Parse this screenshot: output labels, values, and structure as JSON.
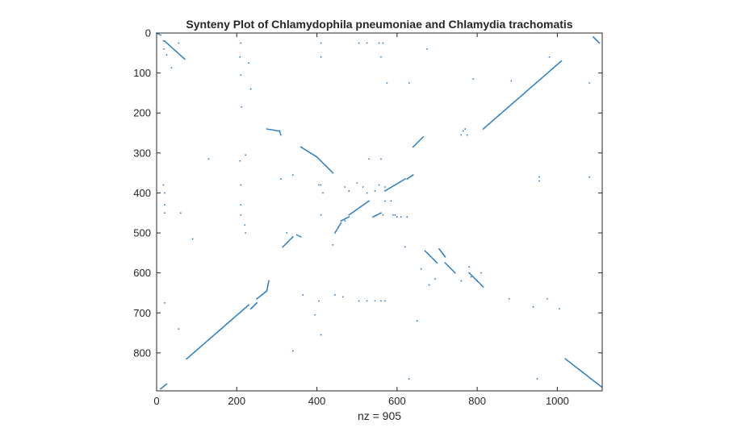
{
  "chart_data": {
    "type": "scatter",
    "title": "Synteny Plot of Chlamydophila pneumoniae and Chlamydia trachomatis",
    "xlabel": "nz = 905",
    "ylabel": "",
    "xlim": [
      0,
      1112
    ],
    "ylim": [
      0,
      895
    ],
    "y_reversed": true,
    "grid": false,
    "x_ticks": [
      0,
      200,
      400,
      600,
      800,
      1000
    ],
    "y_ticks": [
      0,
      100,
      200,
      300,
      400,
      500,
      600,
      700,
      800
    ],
    "color": "#1f77c0",
    "series": [
      {
        "segments": [
          [
            [
              0,
              0
            ],
            [
              10,
              5
            ]
          ],
          [
            [
              20,
              20
            ],
            [
              70,
              65
            ]
          ],
          [
            [
              75,
              815
            ],
            [
              230,
              680
            ]
          ],
          [
            [
              235,
              690
            ],
            [
              250,
              675
            ]
          ],
          [
            [
              250,
              665
            ],
            [
              275,
              645
            ]
          ],
          [
            [
              275,
              645
            ],
            [
              280,
              620
            ]
          ],
          [
            [
              275,
              240
            ],
            [
              305,
              245
            ]
          ],
          [
            [
              307,
              245
            ],
            [
              310,
              255
            ]
          ],
          [
            [
              315,
              535
            ],
            [
              340,
              510
            ]
          ],
          [
            [
              350,
              505
            ],
            [
              360,
              510
            ]
          ],
          [
            [
              360,
              285
            ],
            [
              400,
              310
            ]
          ],
          [
            [
              400,
              310
            ],
            [
              440,
              350
            ]
          ],
          [
            [
              445,
              500
            ],
            [
              460,
              475
            ]
          ],
          [
            [
              460,
              470
            ],
            [
              480,
              460
            ]
          ],
          [
            [
              480,
              455
            ],
            [
              530,
              420
            ]
          ],
          [
            [
              540,
              460
            ],
            [
              560,
              450
            ]
          ],
          [
            [
              570,
              395
            ],
            [
              620,
              365
            ]
          ],
          [
            [
              625,
              365
            ],
            [
              640,
              355
            ]
          ],
          [
            [
              640,
              285
            ],
            [
              665,
              260
            ]
          ],
          [
            [
              670,
              545
            ],
            [
              700,
              575
            ]
          ],
          [
            [
              705,
              540
            ],
            [
              720,
              560
            ]
          ],
          [
            [
              720,
              575
            ],
            [
              745,
              600
            ]
          ],
          [
            [
              780,
              600
            ],
            [
              815,
              635
            ]
          ],
          [
            [
              815,
              240
            ],
            [
              1010,
              70
            ]
          ],
          [
            [
              1090,
              10
            ],
            [
              1105,
              25
            ]
          ],
          [
            [
              1020,
              815
            ],
            [
              1110,
              885
            ]
          ],
          [
            [
              10,
              890
            ],
            [
              25,
              878
            ]
          ]
        ],
        "points": [
          [
            17,
            20
          ],
          [
            18,
            40
          ],
          [
            25,
            55
          ],
          [
            37,
            87
          ],
          [
            55,
            25
          ],
          [
            210,
            25
          ],
          [
            208,
            60
          ],
          [
            210,
            105
          ],
          [
            230,
            75
          ],
          [
            235,
            140
          ],
          [
            212,
            185
          ],
          [
            208,
            320
          ],
          [
            222,
            305
          ],
          [
            130,
            315
          ],
          [
            210,
            380
          ],
          [
            210,
            430
          ],
          [
            210,
            455
          ],
          [
            220,
            480
          ],
          [
            222,
            500
          ],
          [
            17,
            380
          ],
          [
            20,
            400
          ],
          [
            20,
            430
          ],
          [
            20,
            450
          ],
          [
            60,
            450
          ],
          [
            90,
            515
          ],
          [
            20,
            675
          ],
          [
            55,
            740
          ],
          [
            310,
            365
          ],
          [
            340,
            355
          ],
          [
            410,
            25
          ],
          [
            410,
            60
          ],
          [
            505,
            25
          ],
          [
            525,
            25
          ],
          [
            555,
            25
          ],
          [
            560,
            60
          ],
          [
            565,
            25
          ],
          [
            575,
            125
          ],
          [
            630,
            125
          ],
          [
            675,
            40
          ],
          [
            770,
            240
          ],
          [
            790,
            115
          ],
          [
            885,
            120
          ],
          [
            980,
            60
          ],
          [
            1080,
            125
          ],
          [
            1080,
            360
          ],
          [
            955,
            360
          ],
          [
            955,
            370
          ],
          [
            405,
            380
          ],
          [
            415,
            400
          ],
          [
            410,
            455
          ],
          [
            470,
            385
          ],
          [
            480,
            395
          ],
          [
            500,
            375
          ],
          [
            515,
            385
          ],
          [
            525,
            400
          ],
          [
            530,
            315
          ],
          [
            560,
            315
          ],
          [
            545,
            395
          ],
          [
            555,
            380
          ],
          [
            570,
            385
          ],
          [
            570,
            420
          ],
          [
            585,
            420
          ],
          [
            590,
            455
          ],
          [
            595,
            455
          ],
          [
            600,
            460
          ],
          [
            610,
            460
          ],
          [
            625,
            460
          ],
          [
            565,
            455
          ],
          [
            440,
            530
          ],
          [
            470,
            470
          ],
          [
            325,
            500
          ],
          [
            410,
            380
          ],
          [
            365,
            655
          ],
          [
            395,
            705
          ],
          [
            405,
            670
          ],
          [
            410,
            755
          ],
          [
            340,
            795
          ],
          [
            445,
            655
          ],
          [
            465,
            660
          ],
          [
            505,
            670
          ],
          [
            525,
            670
          ],
          [
            545,
            670
          ],
          [
            560,
            670
          ],
          [
            570,
            670
          ],
          [
            630,
            865
          ],
          [
            650,
            720
          ],
          [
            620,
            535
          ],
          [
            660,
            590
          ],
          [
            695,
            615
          ],
          [
            760,
            620
          ],
          [
            800,
            620
          ],
          [
            810,
            600
          ],
          [
            880,
            665
          ],
          [
            940,
            685
          ],
          [
            975,
            665
          ],
          [
            1005,
            690
          ],
          [
            950,
            865
          ],
          [
            765,
            245
          ],
          [
            760,
            255
          ],
          [
            775,
            255
          ],
          [
            780,
            585
          ],
          [
            785,
            610
          ],
          [
            680,
            630
          ]
        ]
      }
    ]
  }
}
